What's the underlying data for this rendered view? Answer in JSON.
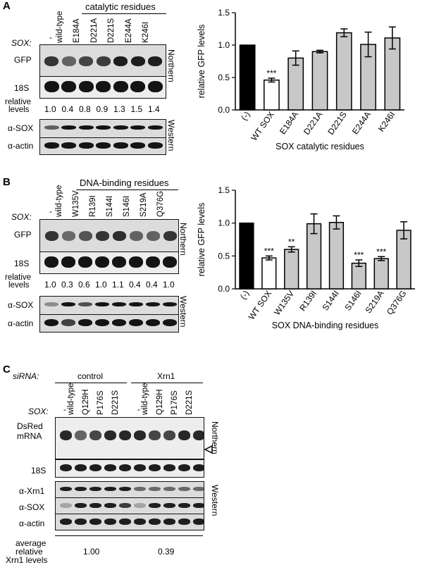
{
  "panelA": {
    "letter": "A",
    "group_label": "catalytic residues",
    "sox_label": "SOX:",
    "lanes": [
      "-",
      "wild-type",
      "E184A",
      "D221A",
      "D221S",
      "E244A",
      "K246I"
    ],
    "row_gfp": "GFP",
    "row_18s": "18S",
    "relative_levels_label": [
      "relative",
      "levels"
    ],
    "relative_levels": [
      "1.0",
      "0.4",
      "0.8",
      "0.9",
      "1.3",
      "1.5",
      "1.4"
    ],
    "row_sox": "α-SOX",
    "row_actin": "α-actin",
    "northern": "Northern",
    "western": "Western"
  },
  "panelB": {
    "letter": "B",
    "group_label": "DNA-binding residues",
    "sox_label": "SOX:",
    "lanes": [
      "-",
      "wild-type",
      "W135V",
      "R139I",
      "S144I",
      "S146I",
      "S219A",
      "Q376G"
    ],
    "row_gfp": "GFP",
    "row_18s": "18S",
    "relative_levels_label": [
      "relative",
      "levels"
    ],
    "relative_levels": [
      "1.0",
      "0.3",
      "0.6",
      "1.0",
      "1.1",
      "0.4",
      "0.4",
      "1.0"
    ],
    "row_sox": "α-SOX",
    "row_actin": "α-actin",
    "northern": "Northern",
    "western": "Western"
  },
  "panelC": {
    "letter": "C",
    "sirna_label": "siRNA:",
    "groups": [
      "control",
      "Xrn1"
    ],
    "sox_label": "SOX:",
    "lanes": [
      "-",
      "wild-type",
      "Q129H",
      "P176S",
      "D221S",
      "-",
      "wild-type",
      "Q129H",
      "P176S",
      "D221S"
    ],
    "row_dsred": [
      "DsRed",
      "mRNA"
    ],
    "row_18s": "18S",
    "row_xrn1": "α-Xrn1",
    "row_sox": "α-SOX",
    "row_actin": "α-actin",
    "northern": "Northern",
    "western": "Western",
    "avg_label": [
      "average",
      "relative",
      "Xrn1 levels"
    ],
    "avg_values": [
      "1.00",
      "0.39"
    ]
  },
  "chart_data": [
    {
      "type": "bar",
      "categories": [
        "(-)",
        "WT SOX",
        "E184A",
        "D221A",
        "D221S",
        "E244A",
        "K246I"
      ],
      "values": [
        1.0,
        0.46,
        0.8,
        0.9,
        1.19,
        1.01,
        1.11
      ],
      "errors": [
        0,
        0.03,
        0.11,
        0.02,
        0.06,
        0.19,
        0.17
      ],
      "significance": [
        "",
        "***",
        "",
        "",
        "",
        "",
        ""
      ],
      "bar_colors": [
        "#000000",
        "#ffffff",
        "#c8c8c8",
        "#c8c8c8",
        "#c8c8c8",
        "#c8c8c8",
        "#c8c8c8"
      ],
      "xlabel": "SOX catalytic residues",
      "ylabel": "relative GFP levels",
      "ylim": [
        0,
        1.5
      ],
      "yticks": [
        "0.0",
        "0.5",
        "1.0",
        "1.5"
      ]
    },
    {
      "type": "bar",
      "categories": [
        "(-)",
        "WT SOX",
        "W135V",
        "R139I",
        "S144I",
        "S146I",
        "S219A",
        "Q376G"
      ],
      "values": [
        1.0,
        0.47,
        0.6,
        0.99,
        1.01,
        0.39,
        0.46,
        0.89
      ],
      "errors": [
        0,
        0.03,
        0.04,
        0.15,
        0.1,
        0.05,
        0.03,
        0.13
      ],
      "significance": [
        "",
        "***",
        "**",
        "",
        "",
        "***",
        "***",
        ""
      ],
      "bar_colors": [
        "#000000",
        "#ffffff",
        "#c8c8c8",
        "#c8c8c8",
        "#c8c8c8",
        "#c8c8c8",
        "#c8c8c8",
        "#c8c8c8"
      ],
      "xlabel": "SOX DNA-binding residues",
      "ylabel": "relative GFP levels",
      "ylim": [
        0,
        1.5
      ],
      "yticks": [
        "0.0",
        "0.5",
        "1.0",
        "1.5"
      ]
    }
  ]
}
